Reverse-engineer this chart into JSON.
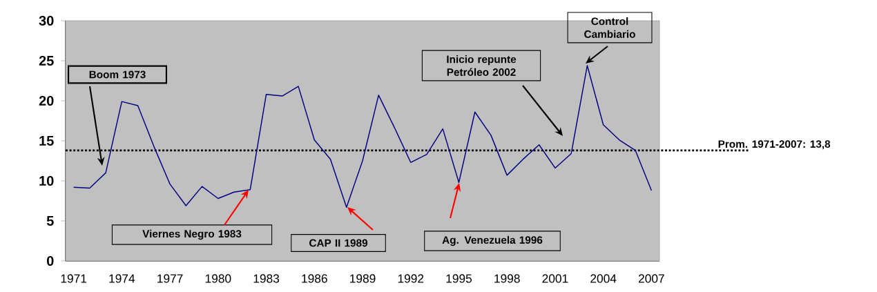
{
  "chart_data": {
    "type": "line",
    "x": [
      1971,
      1972,
      1973,
      1974,
      1975,
      1976,
      1977,
      1978,
      1979,
      1980,
      1981,
      1982,
      1983,
      1984,
      1985,
      1986,
      1987,
      1988,
      1989,
      1990,
      1991,
      1992,
      1993,
      1994,
      1995,
      1996,
      1997,
      1998,
      1999,
      2000,
      2001,
      2002,
      2003,
      2004,
      2005,
      2006,
      2007
    ],
    "values": [
      9.2,
      9.1,
      11.0,
      19.9,
      19.4,
      14.3,
      9.6,
      6.9,
      9.3,
      7.8,
      8.6,
      8.9,
      20.8,
      20.6,
      21.8,
      15.1,
      12.7,
      6.7,
      12.5,
      20.7,
      16.6,
      12.3,
      13.3,
      16.5,
      9.8,
      18.6,
      15.7,
      10.7,
      12.7,
      14.5,
      11.6,
      13.4,
      24.4,
      17.0,
      15.1,
      13.8,
      8.8
    ],
    "color": "#000080",
    "marker": "none",
    "line_style": "solid",
    "grid": false,
    "xlim": [
      1970.5,
      2007.5
    ],
    "xticks": [
      1971,
      1974,
      1977,
      1980,
      1983,
      1986,
      1989,
      1992,
      1995,
      1998,
      2001,
      2004,
      2007
    ],
    "ylim": [
      0,
      30
    ],
    "yticks": [
      0,
      5,
      10,
      15,
      20,
      25,
      30
    ],
    "ref_lines": [
      {
        "axis": "y",
        "value": 13.8,
        "label": "Prom. 1971-2007: 13,8",
        "line_style": "dotted",
        "color": "#000000"
      }
    ],
    "annotations": [
      "Boom 1973",
      "Viernes Negro 1983",
      "CAP II  1989",
      "Ag. Venezuela 1996",
      "Inicio repunte Petróleo 2002",
      "Control Cambiario"
    ]
  }
}
